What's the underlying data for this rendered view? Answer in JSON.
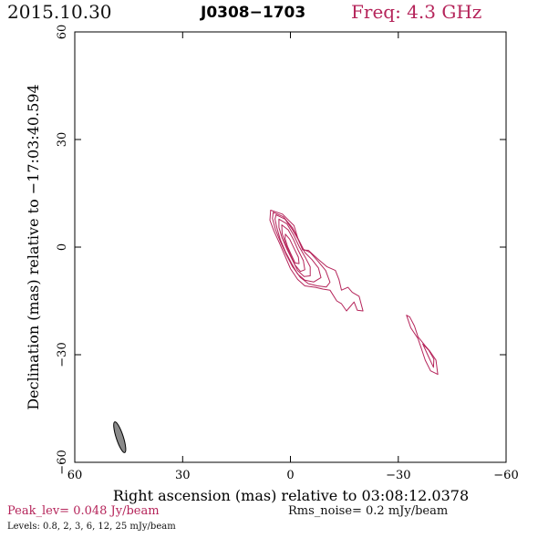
{
  "header": {
    "date": "2015.10.30",
    "source": "J0308−1703",
    "freq": "Freq: 4.3 GHz"
  },
  "footer": {
    "peak": "Peak_lev=  0.048 Jy/beam",
    "rms": "Rms_noise=  0.2 mJy/beam",
    "levels": "Levels: 0.8,   2,   3,   6,   12,   25 mJy/beam"
  },
  "colors": {
    "contour": "#b5245a",
    "beam": "#8a8a8a",
    "axis": "#000000"
  },
  "chart_data": {
    "type": "contour",
    "xlabel": "Right ascension (mas) relative to 03:08:12.0378",
    "ylabel": "Declination (mas) relative to −17:03:40.594",
    "xlim": [
      60,
      -60
    ],
    "ylim": [
      -60,
      60
    ],
    "xticks": [
      60,
      30,
      0,
      -30,
      -60
    ],
    "xtick_labels": [
      "60",
      "30",
      "0",
      "−30",
      "−60"
    ],
    "yticks": [
      -60,
      -30,
      0,
      30,
      60
    ],
    "ytick_labels": [
      "−60",
      "−30",
      "0",
      "30",
      "60"
    ],
    "contour_levels_mJy": [
      0.8,
      2,
      3,
      6,
      12,
      25
    ],
    "core_components": [
      {
        "level": 0.8,
        "polygon": [
          [
            5.5,
            10.3
          ],
          [
            2.2,
            9.2
          ],
          [
            -1.0,
            6.0
          ],
          [
            -2.2,
            2.0
          ],
          [
            -3.4,
            -0.8
          ],
          [
            -5.0,
            -0.9
          ],
          [
            -7.5,
            -3.2
          ],
          [
            -10.2,
            -5.5
          ],
          [
            -12.5,
            -6.5
          ],
          [
            -13.5,
            -9.0
          ],
          [
            -14.2,
            -12.0
          ],
          [
            -16.0,
            -11.2
          ],
          [
            -17.2,
            -12.6
          ],
          [
            -19.1,
            -13.7
          ],
          [
            -20.2,
            -17.8
          ],
          [
            -18.6,
            -17.6
          ],
          [
            -17.7,
            -15.3
          ],
          [
            -15.6,
            -17.8
          ],
          [
            -14.2,
            -15.8
          ],
          [
            -12.9,
            -15.0
          ],
          [
            -11.0,
            -12.0
          ],
          [
            -9.0,
            -11.7
          ],
          [
            -7.0,
            -11.2
          ],
          [
            -4.0,
            -10.8
          ],
          [
            -2.0,
            -9.0
          ],
          [
            0.0,
            -6.0
          ],
          [
            1.5,
            -2.5
          ],
          [
            3.0,
            1.0
          ],
          [
            4.6,
            4.5
          ],
          [
            5.7,
            7.5
          ]
        ]
      },
      {
        "level": 2,
        "polygon": [
          [
            4.8,
            9.7
          ],
          [
            2.0,
            8.5
          ],
          [
            -0.5,
            5.5
          ],
          [
            -2.3,
            2.0
          ],
          [
            -3.6,
            -0.6
          ],
          [
            -5.5,
            -1.5
          ],
          [
            -7.7,
            -4.0
          ],
          [
            -9.8,
            -6.5
          ],
          [
            -11.0,
            -9.8
          ],
          [
            -10.0,
            -11.1
          ],
          [
            -7.5,
            -10.8
          ],
          [
            -5.0,
            -10.2
          ],
          [
            -2.8,
            -8.5
          ],
          [
            -0.6,
            -5.5
          ],
          [
            1.2,
            -2.0
          ],
          [
            2.8,
            1.5
          ],
          [
            4.2,
            5.0
          ],
          [
            5.0,
            8.0
          ]
        ]
      },
      {
        "level": 3,
        "polygon": [
          [
            4.0,
            9.0
          ],
          [
            1.5,
            7.8
          ],
          [
            -0.6,
            4.8
          ],
          [
            -2.5,
            1.5
          ],
          [
            -4.0,
            -1.5
          ],
          [
            -6.0,
            -3.5
          ],
          [
            -7.8,
            -5.8
          ],
          [
            -8.5,
            -8.5
          ],
          [
            -6.5,
            -9.7
          ],
          [
            -4.0,
            -9.2
          ],
          [
            -2.0,
            -7.5
          ],
          [
            -0.3,
            -4.5
          ],
          [
            1.3,
            -1.5
          ],
          [
            2.8,
            2.0
          ],
          [
            3.8,
            5.5
          ],
          [
            4.3,
            7.8
          ]
        ]
      },
      {
        "level": 6,
        "polygon": [
          [
            3.2,
            7.8
          ],
          [
            1.0,
            6.5
          ],
          [
            -0.8,
            3.5
          ],
          [
            -2.5,
            0.0
          ],
          [
            -4.2,
            -3.0
          ],
          [
            -5.5,
            -5.5
          ],
          [
            -5.5,
            -8.0
          ],
          [
            -3.8,
            -8.2
          ],
          [
            -2.0,
            -6.5
          ],
          [
            -0.5,
            -3.5
          ],
          [
            1.0,
            -0.5
          ],
          [
            2.3,
            2.5
          ],
          [
            3.2,
            5.5
          ]
        ]
      },
      {
        "level": 12,
        "polygon": [
          [
            2.4,
            6.2
          ],
          [
            0.6,
            4.8
          ],
          [
            -0.9,
            2.0
          ],
          [
            -2.2,
            -1.0
          ],
          [
            -3.6,
            -3.8
          ],
          [
            -4.0,
            -6.3
          ],
          [
            -2.8,
            -6.8
          ],
          [
            -1.3,
            -5.0
          ],
          [
            0.0,
            -2.2
          ],
          [
            1.3,
            0.8
          ],
          [
            2.3,
            3.8
          ]
        ]
      },
      {
        "level": 25,
        "polygon": [
          [
            1.4,
            3.6
          ],
          [
            0.2,
            2.2
          ],
          [
            -1.0,
            -0.3
          ],
          [
            -2.2,
            -2.8
          ],
          [
            -2.4,
            -4.6
          ],
          [
            -1.3,
            -4.4
          ],
          [
            -0.3,
            -2.3
          ],
          [
            0.8,
            0.2
          ],
          [
            1.5,
            2.4
          ]
        ]
      }
    ],
    "knot_components": [
      {
        "level": 0.8,
        "polygon": [
          [
            -32.3,
            -19.0
          ],
          [
            -33.5,
            -22.5
          ],
          [
            -35.5,
            -25.5
          ],
          [
            -36.5,
            -28.5
          ],
          [
            -37.5,
            -31.5
          ],
          [
            -39.0,
            -34.5
          ],
          [
            -41.0,
            -35.5
          ],
          [
            -40.5,
            -31.5
          ],
          [
            -38.8,
            -29.0
          ],
          [
            -37.5,
            -27.5
          ],
          [
            -35.5,
            -25.0
          ],
          [
            -34.5,
            -22.0
          ],
          [
            -33.2,
            -19.5
          ]
        ]
      },
      {
        "level": 2,
        "polygon": [
          [
            -36.8,
            -27.0
          ],
          [
            -38.4,
            -30.5
          ],
          [
            -39.8,
            -33.5
          ],
          [
            -39.9,
            -31.2
          ],
          [
            -38.5,
            -28.8
          ]
        ]
      }
    ],
    "beam": {
      "center": [
        47.5,
        -53
      ],
      "major_mas": 9.0,
      "minor_mas": 2.0,
      "pa_deg": -18
    }
  }
}
